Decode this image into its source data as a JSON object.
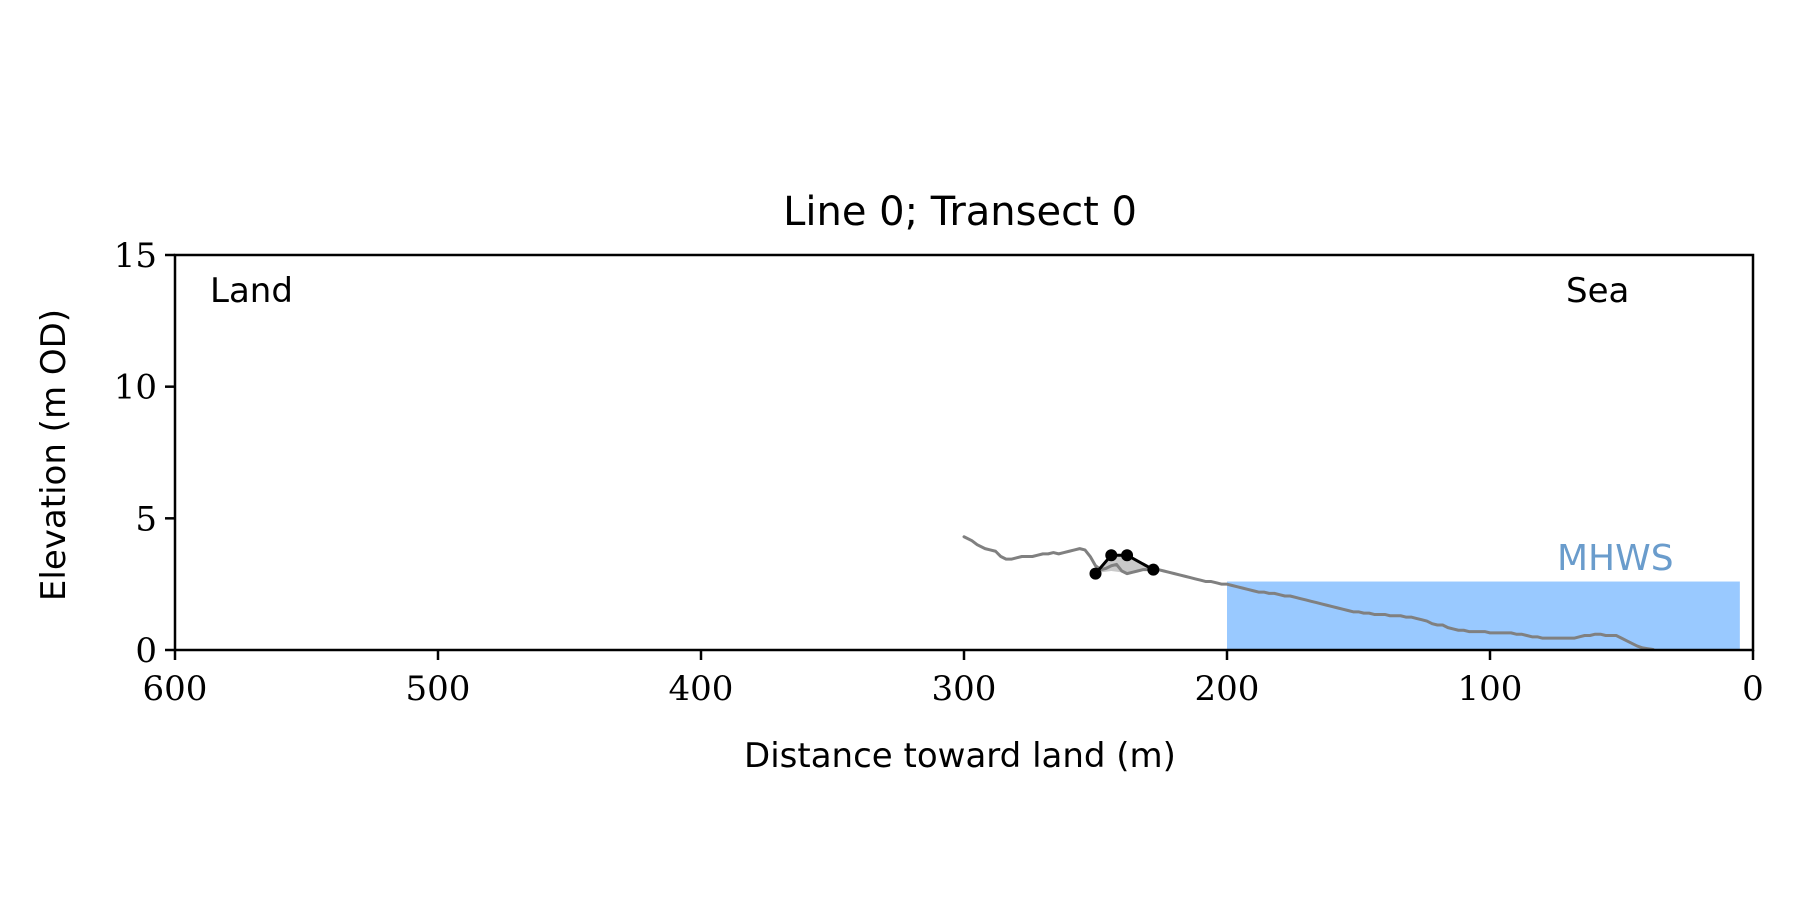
{
  "chart_data": {
    "type": "line",
    "title": "Line 0; Transect 0",
    "xlabel": "Distance toward land (m)",
    "ylabel": "Elevation (m OD)",
    "xlim": [
      600,
      0
    ],
    "ylim": [
      0,
      15
    ],
    "x_ticks": [
      600,
      500,
      400,
      300,
      200,
      100,
      0
    ],
    "y_ticks": [
      0,
      5,
      10,
      15
    ],
    "x_tick_labels": [
      "600",
      "500",
      "400",
      "300",
      "200",
      "100",
      "0"
    ],
    "y_tick_labels": [
      "0",
      "5",
      "10",
      "15"
    ],
    "grid": false,
    "annotations": {
      "land": "Land",
      "sea": "Sea",
      "mhws": "MHWS"
    },
    "mhws": {
      "level": 2.6,
      "x_start": 200,
      "x_end": 5,
      "color": "#99c9ff",
      "label_color": "#6a9ccc"
    },
    "profile": {
      "color": "#808080",
      "points": [
        [
          300,
          4.3
        ],
        [
          297,
          4.15
        ],
        [
          295,
          4.0
        ],
        [
          292,
          3.85
        ],
        [
          290,
          3.8
        ],
        [
          288,
          3.75
        ],
        [
          286,
          3.55
        ],
        [
          284,
          3.45
        ],
        [
          282,
          3.45
        ],
        [
          280,
          3.5
        ],
        [
          278,
          3.55
        ],
        [
          276,
          3.55
        ],
        [
          274,
          3.55
        ],
        [
          272,
          3.6
        ],
        [
          270,
          3.65
        ],
        [
          268,
          3.65
        ],
        [
          266,
          3.7
        ],
        [
          264,
          3.65
        ],
        [
          262,
          3.7
        ],
        [
          260,
          3.75
        ],
        [
          258,
          3.8
        ],
        [
          256,
          3.85
        ],
        [
          254,
          3.8
        ],
        [
          252,
          3.55
        ],
        [
          250,
          3.2
        ],
        [
          248,
          3.05
        ],
        [
          246,
          3.1
        ],
        [
          244,
          3.2
        ],
        [
          242,
          3.25
        ],
        [
          240,
          3.0
        ],
        [
          238,
          2.9
        ],
        [
          236,
          2.95
        ],
        [
          234,
          3.0
        ],
        [
          232,
          3.05
        ],
        [
          230,
          3.05
        ],
        [
          228,
          3.05
        ],
        [
          226,
          3.05
        ],
        [
          224,
          3.0
        ],
        [
          222,
          2.95
        ],
        [
          220,
          2.9
        ],
        [
          218,
          2.85
        ],
        [
          216,
          2.8
        ],
        [
          214,
          2.75
        ],
        [
          212,
          2.7
        ],
        [
          210,
          2.65
        ],
        [
          208,
          2.6
        ],
        [
          206,
          2.6
        ],
        [
          204,
          2.55
        ],
        [
          202,
          2.5
        ],
        [
          200,
          2.5
        ],
        [
          198,
          2.45
        ],
        [
          196,
          2.4
        ],
        [
          194,
          2.35
        ],
        [
          192,
          2.3
        ],
        [
          190,
          2.25
        ],
        [
          188,
          2.2
        ],
        [
          186,
          2.2
        ],
        [
          184,
          2.15
        ],
        [
          182,
          2.15
        ],
        [
          180,
          2.1
        ],
        [
          178,
          2.05
        ],
        [
          176,
          2.05
        ],
        [
          174,
          2.0
        ],
        [
          172,
          1.95
        ],
        [
          170,
          1.9
        ],
        [
          168,
          1.85
        ],
        [
          166,
          1.8
        ],
        [
          164,
          1.75
        ],
        [
          162,
          1.7
        ],
        [
          160,
          1.65
        ],
        [
          158,
          1.6
        ],
        [
          156,
          1.55
        ],
        [
          154,
          1.5
        ],
        [
          152,
          1.45
        ],
        [
          150,
          1.45
        ],
        [
          148,
          1.4
        ],
        [
          146,
          1.4
        ],
        [
          144,
          1.35
        ],
        [
          142,
          1.35
        ],
        [
          140,
          1.35
        ],
        [
          138,
          1.3
        ],
        [
          136,
          1.3
        ],
        [
          134,
          1.3
        ],
        [
          132,
          1.25
        ],
        [
          130,
          1.25
        ],
        [
          128,
          1.2
        ],
        [
          126,
          1.15
        ],
        [
          124,
          1.1
        ],
        [
          122,
          1.0
        ],
        [
          120,
          0.95
        ],
        [
          118,
          0.95
        ],
        [
          116,
          0.85
        ],
        [
          114,
          0.8
        ],
        [
          112,
          0.75
        ],
        [
          110,
          0.75
        ],
        [
          108,
          0.7
        ],
        [
          106,
          0.7
        ],
        [
          104,
          0.7
        ],
        [
          102,
          0.7
        ],
        [
          100,
          0.65
        ],
        [
          98,
          0.65
        ],
        [
          96,
          0.65
        ],
        [
          94,
          0.65
        ],
        [
          92,
          0.65
        ],
        [
          90,
          0.6
        ],
        [
          88,
          0.6
        ],
        [
          86,
          0.55
        ],
        [
          84,
          0.5
        ],
        [
          82,
          0.5
        ],
        [
          80,
          0.45
        ],
        [
          78,
          0.45
        ],
        [
          76,
          0.45
        ],
        [
          74,
          0.45
        ],
        [
          72,
          0.45
        ],
        [
          70,
          0.45
        ],
        [
          68,
          0.45
        ],
        [
          66,
          0.5
        ],
        [
          64,
          0.55
        ],
        [
          62,
          0.55
        ],
        [
          60,
          0.6
        ],
        [
          58,
          0.6
        ],
        [
          56,
          0.55
        ],
        [
          54,
          0.55
        ],
        [
          52,
          0.55
        ],
        [
          50,
          0.45
        ],
        [
          48,
          0.35
        ],
        [
          46,
          0.25
        ],
        [
          44,
          0.15
        ],
        [
          42,
          0.08
        ],
        [
          40,
          0.05
        ],
        [
          38,
          0.02
        ]
      ]
    },
    "dune_feature": {
      "line_color": "#000000",
      "fill_color": "#c9c9c9",
      "points": [
        [
          250,
          2.9
        ],
        [
          244,
          3.6
        ],
        [
          238,
          3.6
        ],
        [
          228,
          3.05
        ]
      ],
      "fill_bottom": [
        [
          228,
          3.05
        ],
        [
          232,
          3.05
        ],
        [
          236,
          2.95
        ],
        [
          240,
          2.95
        ],
        [
          244,
          3.0
        ],
        [
          248,
          2.95
        ],
        [
          250,
          2.9
        ]
      ]
    }
  }
}
